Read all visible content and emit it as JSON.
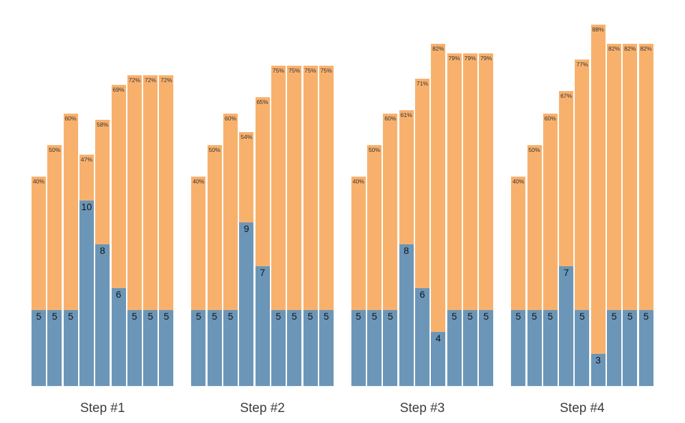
{
  "chart_data": {
    "type": "bar",
    "subtype": "grouped-stacked-columns",
    "title": "",
    "xlabel": "",
    "ylabel": "",
    "legend": "none",
    "grid": false,
    "background": "#ffffff",
    "series": [
      {
        "name": "stack-bottom-blue",
        "color": "#6c96b8",
        "label_style": "integer"
      },
      {
        "name": "stack-top-orange",
        "color": "#f8b16d",
        "label_style": "percent"
      }
    ],
    "groups": [
      {
        "label": "Step #1",
        "bars": [
          {
            "blue": 5,
            "percent": 40,
            "percent_label": "40%",
            "value_label": "5"
          },
          {
            "blue": 5,
            "percent": 50,
            "percent_label": "50%",
            "value_label": "5"
          },
          {
            "blue": 5,
            "percent": 60,
            "percent_label": "60%",
            "value_label": "5"
          },
          {
            "blue": 10,
            "percent": 47,
            "percent_label": "47%",
            "value_label": "10"
          },
          {
            "blue": 8,
            "percent": 58,
            "percent_label": "58%",
            "value_label": "8"
          },
          {
            "blue": 6,
            "percent": 69,
            "percent_label": "69%",
            "value_label": "6"
          },
          {
            "blue": 5,
            "percent": 72,
            "percent_label": "72%",
            "value_label": "5"
          },
          {
            "blue": 5,
            "percent": 72,
            "percent_label": "72%",
            "value_label": "5"
          },
          {
            "blue": 5,
            "percent": 72,
            "percent_label": "72%",
            "value_label": "5"
          }
        ]
      },
      {
        "label": "Step #2",
        "bars": [
          {
            "blue": 5,
            "percent": 40,
            "percent_label": "40%",
            "value_label": "5"
          },
          {
            "blue": 5,
            "percent": 50,
            "percent_label": "50%",
            "value_label": "5"
          },
          {
            "blue": 5,
            "percent": 60,
            "percent_label": "60%",
            "value_label": "5"
          },
          {
            "blue": 9,
            "percent": 54,
            "percent_label": "54%",
            "value_label": "9"
          },
          {
            "blue": 7,
            "percent": 65,
            "percent_label": "65%",
            "value_label": "7"
          },
          {
            "blue": 5,
            "percent": 75,
            "percent_label": "75%",
            "value_label": "5"
          },
          {
            "blue": 5,
            "percent": 75,
            "percent_label": "75%",
            "value_label": "5"
          },
          {
            "blue": 5,
            "percent": 75,
            "percent_label": "75%",
            "value_label": "5"
          },
          {
            "blue": 5,
            "percent": 75,
            "percent_label": "75%",
            "value_label": "5"
          }
        ]
      },
      {
        "label": "Step #3",
        "bars": [
          {
            "blue": 5,
            "percent": 40,
            "percent_label": "40%",
            "value_label": "5"
          },
          {
            "blue": 5,
            "percent": 50,
            "percent_label": "50%",
            "value_label": "5"
          },
          {
            "blue": 5,
            "percent": 60,
            "percent_label": "60%",
            "value_label": "5"
          },
          {
            "blue": 8,
            "percent": 61,
            "percent_label": "61%",
            "value_label": "8"
          },
          {
            "blue": 6,
            "percent": 71,
            "percent_label": "71%",
            "value_label": "6"
          },
          {
            "blue": 4,
            "percent": 82,
            "percent_label": "82%",
            "value_label": "4"
          },
          {
            "blue": 5,
            "percent": 79,
            "percent_label": "79%",
            "value_label": "5"
          },
          {
            "blue": 5,
            "percent": 79,
            "percent_label": "79%",
            "value_label": "5"
          },
          {
            "blue": 5,
            "percent": 79,
            "percent_label": "79%",
            "value_label": "5"
          }
        ]
      },
      {
        "label": "Step #4",
        "bars": [
          {
            "blue": 5,
            "percent": 40,
            "percent_label": "40%",
            "value_label": "5"
          },
          {
            "blue": 5,
            "percent": 50,
            "percent_label": "50%",
            "value_label": "5"
          },
          {
            "blue": 5,
            "percent": 60,
            "percent_label": "60%",
            "value_label": "5"
          },
          {
            "blue": 7,
            "percent": 67,
            "percent_label": "67%",
            "value_label": "7"
          },
          {
            "blue": 5,
            "percent": 77,
            "percent_label": "77%",
            "value_label": "5"
          },
          {
            "blue": 3,
            "percent": 88,
            "percent_label": "88%",
            "value_label": "3"
          },
          {
            "blue": 5,
            "percent": 82,
            "percent_label": "82%",
            "value_label": "5"
          },
          {
            "blue": 5,
            "percent": 82,
            "percent_label": "82%",
            "value_label": "5"
          },
          {
            "blue": 5,
            "percent": 82,
            "percent_label": "82%",
            "value_label": "5"
          }
        ]
      }
    ]
  }
}
